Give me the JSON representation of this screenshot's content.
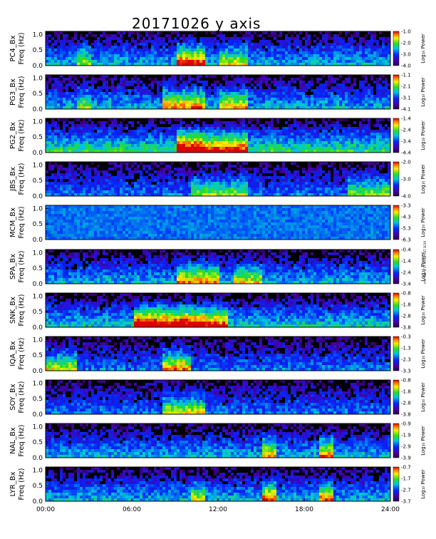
{
  "title": "20171026 y axis",
  "side_note": "mst Mar 4 17:45:44 CST 2019",
  "chart_data": [
    {
      "type": "heatmap",
      "station": "PC4",
      "ylabel_1": "PC4_Bx",
      "ylabel_2": "Freq (Hz)",
      "yticks": [
        "0.0",
        "0.5",
        "1.0"
      ],
      "ylim": [
        0,
        1.1
      ],
      "cb_ticks": [
        "-1.0",
        "-2.0",
        "-3.0",
        "-4.0"
      ],
      "cb_range": [
        -4.0,
        -1.0
      ],
      "cb_label": "Log₁₀ Power",
      "level": 0.45,
      "hot": [
        [
          9,
          11,
          0.9
        ],
        [
          12,
          14,
          0.5
        ],
        [
          2,
          3,
          0.4
        ]
      ]
    },
    {
      "type": "heatmap",
      "station": "PG3",
      "ylabel_1": "PG3_Bx",
      "ylabel_2": "Freq (Hz)",
      "yticks": [
        "0.0",
        "0.5",
        "1.0"
      ],
      "ylim": [
        0,
        1.1
      ],
      "cb_ticks": [
        "-1.1",
        "-2.1",
        "-3.1",
        "-4.1"
      ],
      "cb_range": [
        -4.1,
        -1.1
      ],
      "cb_label": "Log₁₀ Power",
      "level": 0.45,
      "hot": [
        [
          8,
          11,
          0.7
        ],
        [
          12,
          14,
          0.6
        ],
        [
          2,
          3,
          0.4
        ]
      ]
    },
    {
      "type": "heatmap",
      "station": "PG2",
      "ylabel_1": "PG2_Bx",
      "ylabel_2": "Freq (Hz)",
      "yticks": [
        "0.0",
        "0.5",
        "1.0"
      ],
      "ylim": [
        0,
        1.1
      ],
      "cb_ticks": [
        "-1.4",
        "-2.4",
        "-3.4",
        "-4.4"
      ],
      "cb_range": [
        -4.4,
        -1.4
      ],
      "cb_label": "Log₁₀ Power",
      "level": 0.6,
      "hot": [
        [
          9,
          11,
          1.0
        ],
        [
          11,
          14,
          0.7
        ]
      ]
    },
    {
      "type": "heatmap",
      "station": "JBS",
      "ylabel_1": "JBS_Bx",
      "ylabel_2": "Freq (Hz)",
      "yticks": [
        "0.0",
        "0.5",
        "1.0"
      ],
      "ylim": [
        0,
        1.1
      ],
      "cb_ticks": [
        "-2.0",
        "-3.0",
        "-4.0"
      ],
      "cb_range": [
        -4.0,
        -2.0
      ],
      "cb_label": "Log₁₀ Power",
      "level": 0.35,
      "hot": [
        [
          10,
          14,
          0.5
        ],
        [
          21,
          24,
          0.5
        ]
      ]
    },
    {
      "type": "heatmap",
      "station": "MCM",
      "ylabel_1": "MCM_Bx",
      "ylabel_2": "Freq (Hz)",
      "yticks": [
        "0.0",
        "0.5",
        "1.0"
      ],
      "ylim": [
        0,
        1.1
      ],
      "cb_ticks": [
        "-3.3",
        "-4.3",
        "-5.3",
        "-6.3"
      ],
      "cb_range": [
        -6.3,
        -3.3
      ],
      "cb_label": "Log₁₀ Power",
      "level": 1.0,
      "hot": []
    },
    {
      "type": "heatmap",
      "station": "SPA",
      "ylabel_1": "SPA_Bx",
      "ylabel_2": "Freq (Hz)",
      "yticks": [
        "0.0",
        "0.5",
        "1.0"
      ],
      "ylim": [
        0,
        1.1
      ],
      "cb_ticks": [
        "-0.4",
        "-1.4",
        "-2.4",
        "-3.4"
      ],
      "cb_range": [
        -3.4,
        -0.4
      ],
      "cb_label": "Log₁₀ Power",
      "level": 0.45,
      "hot": [
        [
          9,
          12,
          0.7
        ],
        [
          13,
          15,
          0.5
        ]
      ]
    },
    {
      "type": "heatmap",
      "station": "SNK",
      "ylabel_1": "SNK_Bx",
      "ylabel_2": "Freq (Hz)",
      "yticks": [
        "0.0",
        "0.5",
        "1.0"
      ],
      "ylim": [
        0,
        1.1
      ],
      "cb_ticks": [
        "-0.8",
        "-1.8",
        "-2.8",
        "-3.8"
      ],
      "cb_range": [
        -3.8,
        -0.8
      ],
      "cb_label": "Log₁₀ Power",
      "level": 0.5,
      "hot": [
        [
          6,
          11,
          1.0
        ],
        [
          11,
          12.5,
          0.8
        ]
      ]
    },
    {
      "type": "heatmap",
      "station": "IQA",
      "ylabel_1": "IQA_Bx",
      "ylabel_2": "Freq (Hz)",
      "yticks": [
        "0.0",
        "0.5",
        "1.0"
      ],
      "ylim": [
        0,
        1.1
      ],
      "cb_ticks": [
        "-0.3",
        "-1.3",
        "-2.3",
        "-3.3"
      ],
      "cb_range": [
        -3.3,
        -0.3
      ],
      "cb_label": "Log₁₀ Power",
      "level": 0.35,
      "hot": [
        [
          8,
          10,
          0.8
        ],
        [
          0,
          2,
          0.6
        ]
      ]
    },
    {
      "type": "heatmap",
      "station": "SOY",
      "ylabel_1": "SOY_Bx",
      "ylabel_2": "Freq (Hz)",
      "yticks": [
        "0.0",
        "0.5",
        "1.0"
      ],
      "ylim": [
        0,
        1.1
      ],
      "cb_ticks": [
        "-0.8",
        "-1.8",
        "-2.8",
        "-3.8"
      ],
      "cb_range": [
        -3.8,
        -0.8
      ],
      "cb_label": "Log₁₀ Power",
      "level": 0.35,
      "hot": [
        [
          8,
          11,
          0.6
        ]
      ]
    },
    {
      "type": "heatmap",
      "station": "NAL",
      "ylabel_1": "NAL_Bx",
      "ylabel_2": "Freq (Hz)",
      "yticks": [
        "0.0",
        "0.5",
        "1.0"
      ],
      "ylim": [
        0,
        1.1
      ],
      "cb_ticks": [
        "-0.9",
        "-1.9",
        "-2.9",
        "-3.9"
      ],
      "cb_range": [
        -3.9,
        -0.9
      ],
      "cb_label": "Log₁₀ Power",
      "level": 0.45,
      "hot": [
        [
          15,
          16,
          0.7
        ],
        [
          19,
          20,
          0.7
        ]
      ]
    },
    {
      "type": "heatmap",
      "station": "LYR",
      "ylabel_1": "LYR_Bx",
      "ylabel_2": "Freq (Hz)",
      "yticks": [
        "0.0",
        "0.5",
        "1.0"
      ],
      "ylim": [
        0,
        1.1
      ],
      "cb_ticks": [
        "-0.7",
        "-1.7",
        "-2.7",
        "-3.7"
      ],
      "cb_range": [
        -3.7,
        -0.7
      ],
      "cb_label": "Log₁₀ Power",
      "level": 0.45,
      "hot": [
        [
          15,
          16,
          0.8
        ],
        [
          19,
          20,
          0.7
        ],
        [
          10,
          11,
          0.5
        ]
      ]
    }
  ],
  "x_axis": {
    "ticks": [
      "00:00",
      "06:00",
      "12:00",
      "18:00",
      "24:00"
    ],
    "xlim_hours": [
      0,
      24
    ]
  },
  "colors": {
    "background": "#000000",
    "mcm_background": "#3a4ed8",
    "frame": "#000000"
  }
}
